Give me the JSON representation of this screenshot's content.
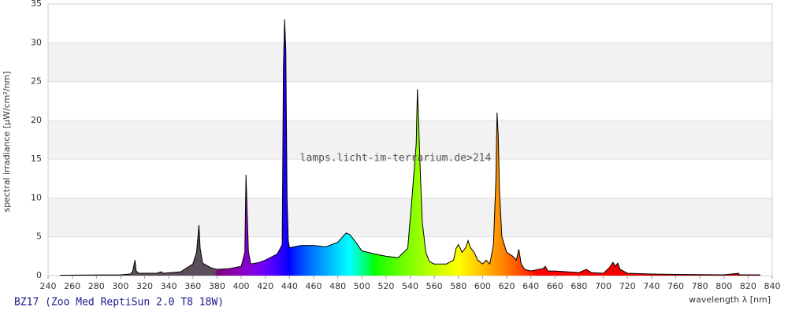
{
  "chart_data": {
    "type": "area",
    "caption": "BZ17 (Zoo Med ReptiSun 2.0 T8 18W)",
    "watermark": "lamps.licht-im-terrarium.de>214",
    "x_label": "wavelength λ [nm]",
    "y_label": "spectral irradiance [µW/cm²/nm]",
    "x": [
      250,
      300,
      308,
      310,
      312,
      313,
      315,
      330,
      334,
      335,
      350,
      360,
      363,
      365,
      366,
      368,
      375,
      380,
      390,
      400,
      403,
      404,
      405,
      406,
      408,
      415,
      420,
      430,
      434,
      435,
      436,
      437,
      438,
      439,
      440,
      450,
      460,
      470,
      480,
      487,
      490,
      495,
      500,
      510,
      520,
      530,
      538,
      541,
      543,
      545,
      546,
      547,
      548,
      550,
      553,
      556,
      560,
      570,
      576,
      578,
      580,
      583,
      586,
      588,
      590,
      593,
      596,
      600,
      603,
      606,
      609,
      611,
      612,
      613,
      614,
      616,
      620,
      625,
      628,
      630,
      632,
      635,
      640,
      650,
      652,
      654,
      660,
      670,
      680,
      686,
      690,
      700,
      705,
      708,
      710,
      712,
      714,
      720,
      740,
      760,
      800,
      812,
      813,
      830
    ],
    "values": [
      0.05,
      0.1,
      0.2,
      0.5,
      2.0,
      0.6,
      0.3,
      0.3,
      0.5,
      0.3,
      0.5,
      1.5,
      3.0,
      6.5,
      3.5,
      1.6,
      1.0,
      0.8,
      0.9,
      1.2,
      3,
      13,
      8,
      3,
      1.5,
      1.7,
      2.0,
      2.8,
      4,
      27,
      33,
      29,
      10,
      4.5,
      3.6,
      3.9,
      3.9,
      3.7,
      4.3,
      5.5,
      5.3,
      4.3,
      3.2,
      2.8,
      2.5,
      2.3,
      3.5,
      9,
      13,
      17,
      24,
      20,
      15,
      7,
      3,
      1.8,
      1.5,
      1.5,
      2,
      3.5,
      4.0,
      3.0,
      3.6,
      4.5,
      3.6,
      3.0,
      2.0,
      1.5,
      2.0,
      1.5,
      4,
      12,
      21,
      18,
      11,
      5,
      3,
      2.5,
      2.0,
      3.4,
      1.5,
      0.8,
      0.6,
      0.9,
      1.2,
      0.6,
      0.6,
      0.5,
      0.4,
      0.8,
      0.4,
      0.3,
      1.0,
      1.7,
      1.2,
      1.6,
      0.8,
      0.3,
      0.2,
      0.15,
      0.1,
      0.3,
      0.1,
      0.1
    ],
    "xlim": [
      240,
      840
    ],
    "ylim": [
      0,
      35
    ],
    "xticks": [
      240,
      260,
      280,
      300,
      320,
      340,
      360,
      380,
      400,
      420,
      440,
      460,
      480,
      500,
      520,
      540,
      560,
      580,
      600,
      620,
      640,
      660,
      680,
      700,
      720,
      740,
      760,
      780,
      800,
      820,
      840
    ],
    "yticks": [
      0,
      5,
      10,
      15,
      20,
      25,
      30,
      35
    ],
    "grid": true,
    "line_color": "#000000"
  }
}
